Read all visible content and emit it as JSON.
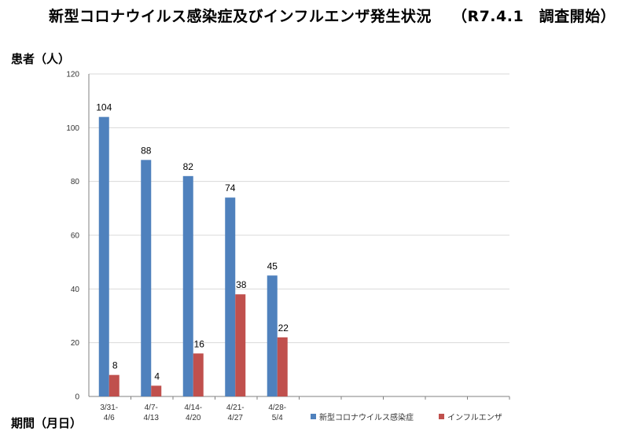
{
  "header": {
    "title": "新型コロナウイルス感染症及びインフルエンザ発生状況",
    "note": "（R7.4.1　調査開始）"
  },
  "axis": {
    "ylabel": "患者（人）",
    "xlabel": "期間（月日）"
  },
  "colors": {
    "covid": "#4f81bd",
    "flu": "#c0504d",
    "grid": "#d9d9d9",
    "axis": "#808080"
  },
  "chart_data": {
    "type": "bar",
    "title": "新型コロナウイルス感染症及びインフルエンザ発生状況",
    "ylabel": "患者（人）",
    "xlabel": "期間（月日）",
    "ylim": [
      0,
      120
    ],
    "yticks": [
      0,
      20,
      40,
      60,
      80,
      100,
      120
    ],
    "grid": true,
    "legend_position": "bottom-right",
    "categories": [
      [
        "3/31-",
        "4/6"
      ],
      [
        "4/7-",
        "4/13"
      ],
      [
        "4/14-",
        "4/20"
      ],
      [
        "4/21-",
        "4/27"
      ],
      [
        "4/28-",
        "5/4"
      ],
      [
        "",
        ""
      ],
      [
        "",
        ""
      ],
      [
        "",
        ""
      ],
      [
        "",
        ""
      ],
      [
        "",
        ""
      ]
    ],
    "series": [
      {
        "name": "新型コロナウイルス感染症",
        "values": [
          104,
          88,
          82,
          74,
          45,
          null,
          null,
          null,
          null,
          null
        ]
      },
      {
        "name": "インフルエンザ",
        "values": [
          8,
          4,
          16,
          38,
          22,
          null,
          null,
          null,
          null,
          null
        ]
      }
    ]
  }
}
